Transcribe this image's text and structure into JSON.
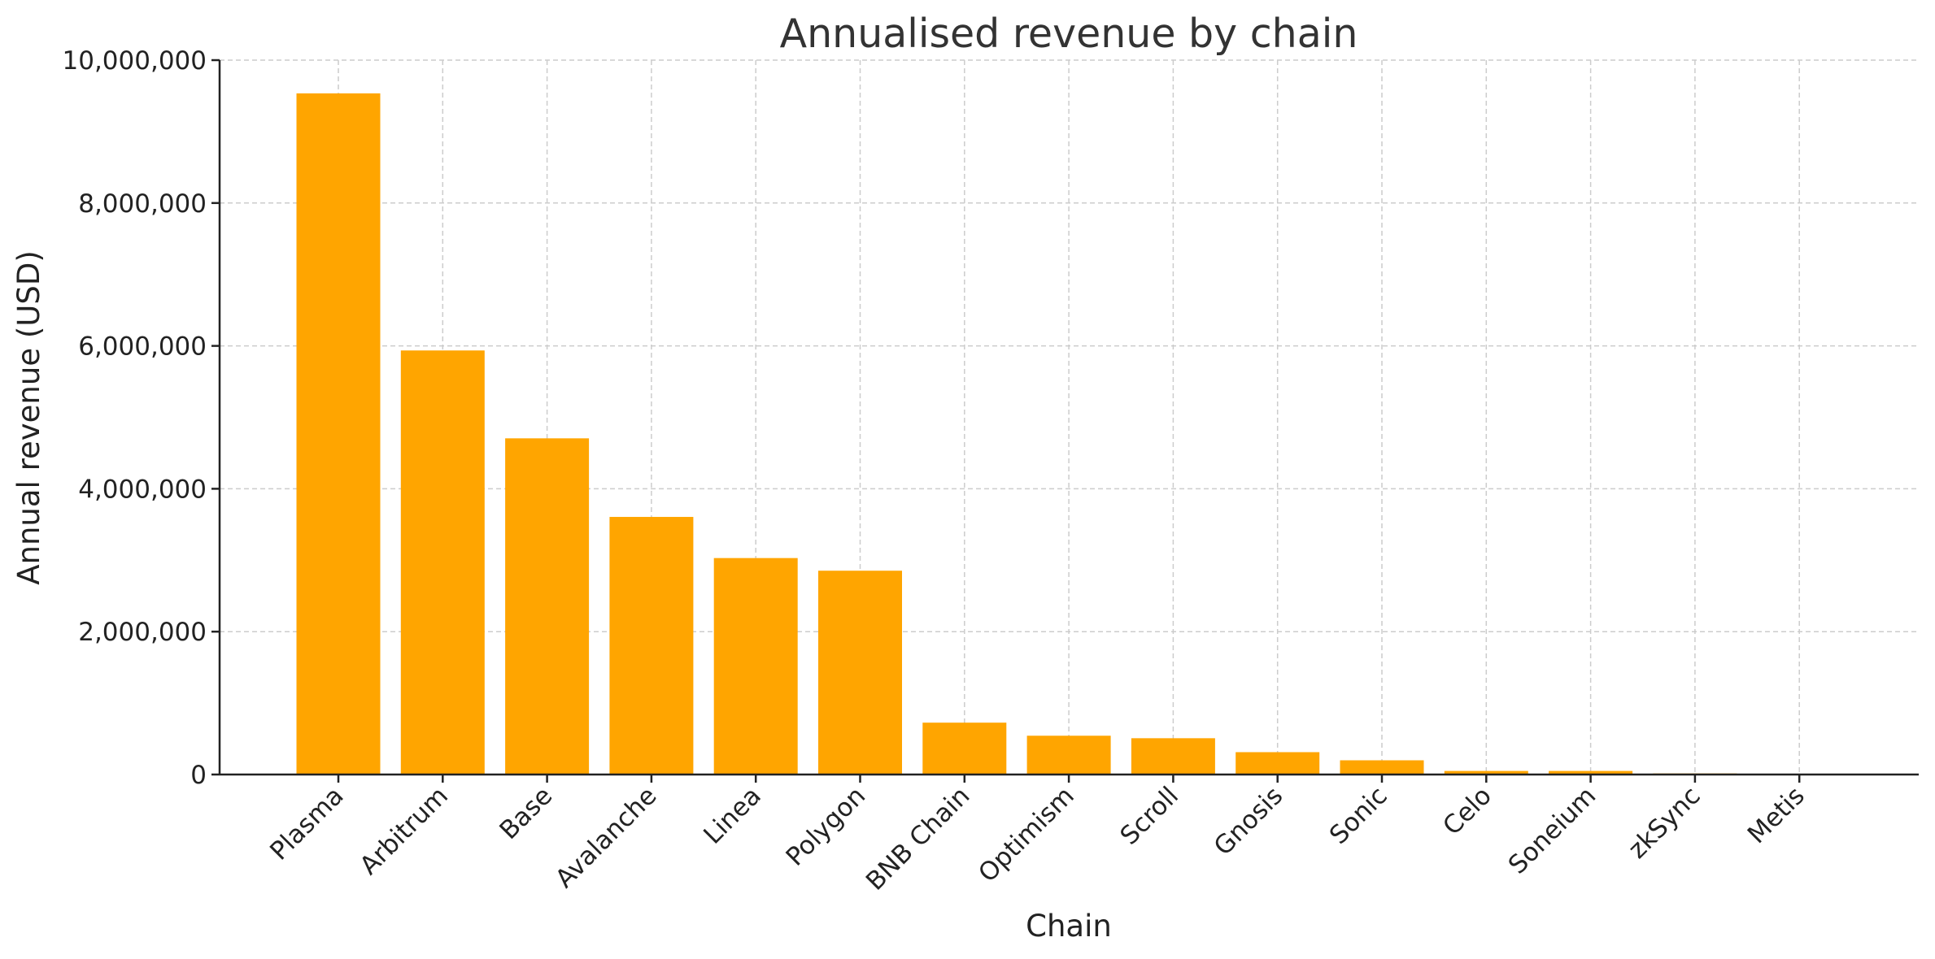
{
  "chart_data": {
    "type": "bar",
    "title": "Annualised revenue by chain",
    "xlabel": "Chain",
    "ylabel": "Annual revenue (USD)",
    "ylim": [
      0,
      10000000
    ],
    "yticks": [
      0,
      2000000,
      4000000,
      6000000,
      8000000,
      10000000
    ],
    "ytick_labels": [
      "0",
      "2,000,000",
      "4,000,000",
      "6,000,000",
      "8,000,000",
      "10,000,000"
    ],
    "grid": true,
    "bar_color": "#FFA500",
    "categories": [
      "Plasma",
      "Arbitrum",
      "Base",
      "Avalanche",
      "Linea",
      "Polygon",
      "BNB Chain",
      "Optimism",
      "Scroll",
      "Gnosis",
      "Sonic",
      "Celo",
      "Soneium",
      "zkSync",
      "Metis"
    ],
    "values": [
      9535000,
      5936000,
      4706000,
      3606000,
      3030000,
      2853000,
      726000,
      543000,
      508000,
      313000,
      199000,
      50000,
      50000,
      15000,
      2000
    ]
  }
}
